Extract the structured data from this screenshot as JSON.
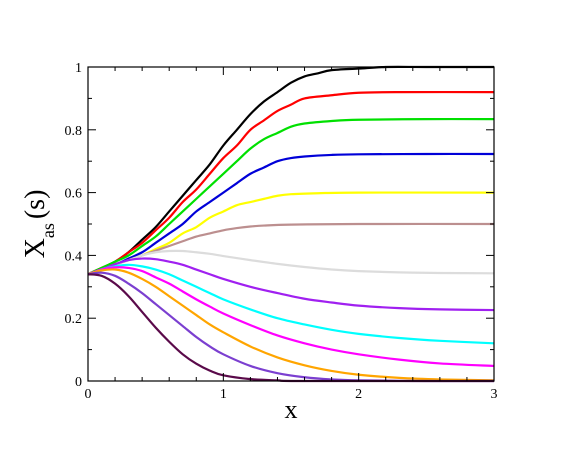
{
  "chart_data": {
    "type": "line",
    "title": "",
    "xlabel": "x",
    "ylabel_main": "X",
    "ylabel_sub": "as",
    "ylabel_tail": "(s)",
    "xlim": [
      0,
      3
    ],
    "ylim": [
      0,
      1
    ],
    "xticks": [
      0,
      1,
      2,
      3
    ],
    "xtick_labels": [
      "0",
      "1",
      "2",
      "3"
    ],
    "yticks": [
      0,
      0.2,
      0.4,
      0.6,
      0.8,
      1
    ],
    "ytick_labels": [
      "0",
      "0.2",
      "0.4",
      "0.6",
      "0.8",
      "1"
    ],
    "grid": false,
    "legend": "none",
    "series": [
      {
        "color": "#000000",
        "points": [
          [
            0,
            0.34
          ],
          [
            0.1,
            0.36
          ],
          [
            0.2,
            0.38
          ],
          [
            0.3,
            0.41
          ],
          [
            0.4,
            0.45
          ],
          [
            0.5,
            0.49
          ],
          [
            0.6,
            0.54
          ],
          [
            0.7,
            0.59
          ],
          [
            0.8,
            0.64
          ],
          [
            0.9,
            0.69
          ],
          [
            1.0,
            0.75
          ],
          [
            1.1,
            0.8
          ],
          [
            1.2,
            0.85
          ],
          [
            1.3,
            0.89
          ],
          [
            1.4,
            0.92
          ],
          [
            1.5,
            0.95
          ],
          [
            1.6,
            0.97
          ],
          [
            1.7,
            0.98
          ],
          [
            1.8,
            0.99
          ],
          [
            2.0,
            0.995
          ],
          [
            2.2,
            1.0
          ],
          [
            2.5,
            1.0
          ],
          [
            3.0,
            1.0
          ]
        ]
      },
      {
        "color": "#ff0000",
        "points": [
          [
            0,
            0.34
          ],
          [
            0.1,
            0.36
          ],
          [
            0.2,
            0.38
          ],
          [
            0.3,
            0.41
          ],
          [
            0.4,
            0.44
          ],
          [
            0.5,
            0.48
          ],
          [
            0.6,
            0.52
          ],
          [
            0.7,
            0.57
          ],
          [
            0.8,
            0.61
          ],
          [
            0.9,
            0.66
          ],
          [
            1.0,
            0.71
          ],
          [
            1.1,
            0.75
          ],
          [
            1.2,
            0.8
          ],
          [
            1.3,
            0.83
          ],
          [
            1.4,
            0.86
          ],
          [
            1.5,
            0.88
          ],
          [
            1.6,
            0.9
          ],
          [
            1.8,
            0.91
          ],
          [
            2.0,
            0.918
          ],
          [
            2.3,
            0.92
          ],
          [
            3.0,
            0.92
          ]
        ]
      },
      {
        "color": "#00e000",
        "points": [
          [
            0,
            0.34
          ],
          [
            0.1,
            0.36
          ],
          [
            0.2,
            0.38
          ],
          [
            0.3,
            0.4
          ],
          [
            0.4,
            0.43
          ],
          [
            0.5,
            0.46
          ],
          [
            0.6,
            0.5
          ],
          [
            0.7,
            0.54
          ],
          [
            0.8,
            0.58
          ],
          [
            0.9,
            0.62
          ],
          [
            1.0,
            0.66
          ],
          [
            1.1,
            0.7
          ],
          [
            1.2,
            0.74
          ],
          [
            1.3,
            0.77
          ],
          [
            1.4,
            0.79
          ],
          [
            1.5,
            0.81
          ],
          [
            1.6,
            0.82
          ],
          [
            1.8,
            0.828
          ],
          [
            2.0,
            0.832
          ],
          [
            2.5,
            0.834
          ],
          [
            3.0,
            0.834
          ]
        ]
      },
      {
        "color": "#0000d8",
        "points": [
          [
            0,
            0.34
          ],
          [
            0.1,
            0.355
          ],
          [
            0.2,
            0.37
          ],
          [
            0.3,
            0.39
          ],
          [
            0.4,
            0.41
          ],
          [
            0.5,
            0.44
          ],
          [
            0.6,
            0.47
          ],
          [
            0.7,
            0.5
          ],
          [
            0.8,
            0.54
          ],
          [
            0.9,
            0.57
          ],
          [
            1.0,
            0.6
          ],
          [
            1.1,
            0.63
          ],
          [
            1.2,
            0.66
          ],
          [
            1.3,
            0.68
          ],
          [
            1.4,
            0.7
          ],
          [
            1.5,
            0.71
          ],
          [
            1.6,
            0.715
          ],
          [
            1.8,
            0.72
          ],
          [
            2.0,
            0.722
          ],
          [
            2.5,
            0.723
          ],
          [
            3.0,
            0.723
          ]
        ]
      },
      {
        "color": "#ffff00",
        "points": [
          [
            0,
            0.34
          ],
          [
            0.1,
            0.355
          ],
          [
            0.2,
            0.37
          ],
          [
            0.3,
            0.385
          ],
          [
            0.4,
            0.4
          ],
          [
            0.5,
            0.42
          ],
          [
            0.6,
            0.44
          ],
          [
            0.7,
            0.47
          ],
          [
            0.8,
            0.49
          ],
          [
            0.9,
            0.52
          ],
          [
            1.0,
            0.54
          ],
          [
            1.1,
            0.56
          ],
          [
            1.2,
            0.57
          ],
          [
            1.3,
            0.58
          ],
          [
            1.4,
            0.59
          ],
          [
            1.5,
            0.595
          ],
          [
            1.7,
            0.598
          ],
          [
            2.0,
            0.6
          ],
          [
            3.0,
            0.6
          ]
        ]
      },
      {
        "color": "#bc8f8f",
        "points": [
          [
            0,
            0.34
          ],
          [
            0.1,
            0.355
          ],
          [
            0.2,
            0.37
          ],
          [
            0.3,
            0.385
          ],
          [
            0.4,
            0.4
          ],
          [
            0.5,
            0.415
          ],
          [
            0.6,
            0.43
          ],
          [
            0.7,
            0.445
          ],
          [
            0.8,
            0.46
          ],
          [
            0.9,
            0.47
          ],
          [
            1.0,
            0.48
          ],
          [
            1.1,
            0.487
          ],
          [
            1.2,
            0.492
          ],
          [
            1.3,
            0.495
          ],
          [
            1.5,
            0.498
          ],
          [
            2.0,
            0.5
          ],
          [
            3.0,
            0.5
          ]
        ]
      },
      {
        "color": "#dcdcdc",
        "points": [
          [
            0,
            0.34
          ],
          [
            0.1,
            0.355
          ],
          [
            0.2,
            0.37
          ],
          [
            0.3,
            0.385
          ],
          [
            0.4,
            0.4
          ],
          [
            0.5,
            0.41
          ],
          [
            0.6,
            0.414
          ],
          [
            0.7,
            0.414
          ],
          [
            0.8,
            0.41
          ],
          [
            0.9,
            0.405
          ],
          [
            1.0,
            0.398
          ],
          [
            1.2,
            0.385
          ],
          [
            1.4,
            0.373
          ],
          [
            1.6,
            0.363
          ],
          [
            1.8,
            0.355
          ],
          [
            2.0,
            0.35
          ],
          [
            2.3,
            0.346
          ],
          [
            2.6,
            0.344
          ],
          [
            3.0,
            0.343
          ]
        ]
      },
      {
        "color": "#a020f0",
        "points": [
          [
            0,
            0.34
          ],
          [
            0.1,
            0.355
          ],
          [
            0.2,
            0.372
          ],
          [
            0.3,
            0.385
          ],
          [
            0.4,
            0.39
          ],
          [
            0.5,
            0.388
          ],
          [
            0.6,
            0.38
          ],
          [
            0.7,
            0.37
          ],
          [
            0.8,
            0.355
          ],
          [
            0.9,
            0.34
          ],
          [
            1.0,
            0.325
          ],
          [
            1.2,
            0.3
          ],
          [
            1.4,
            0.28
          ],
          [
            1.6,
            0.262
          ],
          [
            1.8,
            0.25
          ],
          [
            2.0,
            0.24
          ],
          [
            2.3,
            0.232
          ],
          [
            2.6,
            0.228
          ],
          [
            3.0,
            0.226
          ]
        ]
      },
      {
        "color": "#00ffff",
        "points": [
          [
            0,
            0.34
          ],
          [
            0.1,
            0.355
          ],
          [
            0.2,
            0.365
          ],
          [
            0.3,
            0.37
          ],
          [
            0.4,
            0.365
          ],
          [
            0.5,
            0.355
          ],
          [
            0.6,
            0.34
          ],
          [
            0.7,
            0.32
          ],
          [
            0.8,
            0.3
          ],
          [
            0.9,
            0.28
          ],
          [
            1.0,
            0.26
          ],
          [
            1.2,
            0.228
          ],
          [
            1.4,
            0.2
          ],
          [
            1.6,
            0.18
          ],
          [
            1.8,
            0.163
          ],
          [
            2.0,
            0.15
          ],
          [
            2.3,
            0.137
          ],
          [
            2.6,
            0.128
          ],
          [
            3.0,
            0.12
          ]
        ]
      },
      {
        "color": "#ff00ff",
        "points": [
          [
            0,
            0.34
          ],
          [
            0.1,
            0.355
          ],
          [
            0.2,
            0.362
          ],
          [
            0.3,
            0.36
          ],
          [
            0.4,
            0.35
          ],
          [
            0.5,
            0.33
          ],
          [
            0.6,
            0.31
          ],
          [
            0.7,
            0.285
          ],
          [
            0.8,
            0.26
          ],
          [
            0.9,
            0.237
          ],
          [
            1.0,
            0.215
          ],
          [
            1.2,
            0.178
          ],
          [
            1.4,
            0.145
          ],
          [
            1.6,
            0.12
          ],
          [
            1.8,
            0.1
          ],
          [
            2.0,
            0.085
          ],
          [
            2.3,
            0.068
          ],
          [
            2.6,
            0.056
          ],
          [
            3.0,
            0.048
          ]
        ]
      },
      {
        "color": "#ffa500",
        "points": [
          [
            0,
            0.34
          ],
          [
            0.1,
            0.352
          ],
          [
            0.2,
            0.355
          ],
          [
            0.3,
            0.345
          ],
          [
            0.4,
            0.325
          ],
          [
            0.5,
            0.3
          ],
          [
            0.6,
            0.27
          ],
          [
            0.7,
            0.24
          ],
          [
            0.8,
            0.21
          ],
          [
            0.9,
            0.18
          ],
          [
            1.0,
            0.155
          ],
          [
            1.2,
            0.11
          ],
          [
            1.4,
            0.075
          ],
          [
            1.6,
            0.05
          ],
          [
            1.8,
            0.032
          ],
          [
            2.0,
            0.02
          ],
          [
            2.3,
            0.01
          ],
          [
            2.6,
            0.005
          ],
          [
            3.0,
            0.002
          ]
        ]
      },
      {
        "color": "#7b3fd0",
        "points": [
          [
            0,
            0.34
          ],
          [
            0.1,
            0.345
          ],
          [
            0.2,
            0.335
          ],
          [
            0.3,
            0.31
          ],
          [
            0.4,
            0.28
          ],
          [
            0.5,
            0.245
          ],
          [
            0.6,
            0.21
          ],
          [
            0.7,
            0.175
          ],
          [
            0.8,
            0.14
          ],
          [
            0.9,
            0.11
          ],
          [
            1.0,
            0.085
          ],
          [
            1.2,
            0.048
          ],
          [
            1.4,
            0.025
          ],
          [
            1.6,
            0.012
          ],
          [
            1.8,
            0.005
          ],
          [
            2.0,
            0.002
          ],
          [
            2.5,
            0.0
          ],
          [
            3.0,
            0.0
          ]
        ]
      },
      {
        "color": "#5a0a4a",
        "points": [
          [
            0,
            0.34
          ],
          [
            0.1,
            0.335
          ],
          [
            0.2,
            0.31
          ],
          [
            0.3,
            0.27
          ],
          [
            0.4,
            0.22
          ],
          [
            0.5,
            0.17
          ],
          [
            0.6,
            0.125
          ],
          [
            0.7,
            0.085
          ],
          [
            0.8,
            0.055
          ],
          [
            0.9,
            0.033
          ],
          [
            1.0,
            0.018
          ],
          [
            1.2,
            0.006
          ],
          [
            1.4,
            0.002
          ],
          [
            1.6,
            0.0
          ],
          [
            3.0,
            0.0
          ]
        ]
      }
    ]
  }
}
